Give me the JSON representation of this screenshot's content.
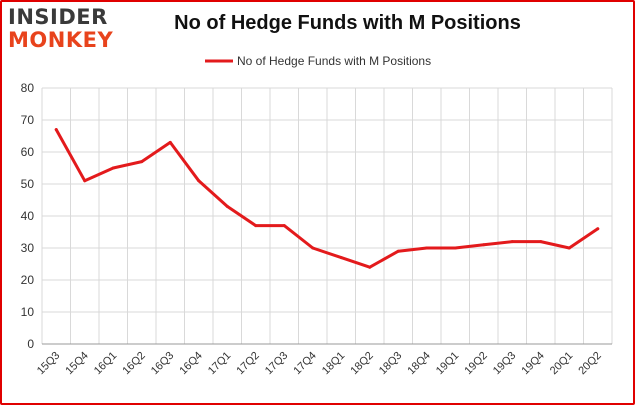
{
  "logo": {
    "line1": "INSIDER",
    "line2": "MONKEY"
  },
  "chart_data": {
    "type": "line",
    "title": "No of Hedge Funds with M Positions",
    "xlabel": "",
    "ylabel": "",
    "categories": [
      "15Q3",
      "15Q4",
      "16Q1",
      "16Q2",
      "16Q3",
      "16Q4",
      "17Q1",
      "17Q2",
      "17Q3",
      "17Q4",
      "18Q1",
      "18Q2",
      "18Q3",
      "18Q4",
      "19Q1",
      "19Q2",
      "19Q3",
      "19Q4",
      "20Q1",
      "20Q2"
    ],
    "series": [
      {
        "name": "No of Hedge Funds with M Positions",
        "color": "#e31a1c",
        "values": [
          67,
          51,
          55,
          57,
          63,
          51,
          43,
          37,
          37,
          30,
          27,
          24,
          29,
          30,
          30,
          31,
          32,
          32,
          30,
          36
        ]
      }
    ],
    "ylim": [
      0,
      80
    ],
    "yticks": [
      0,
      10,
      20,
      30,
      40,
      50,
      60,
      70,
      80
    ],
    "grid": true,
    "legend": "top-center"
  }
}
